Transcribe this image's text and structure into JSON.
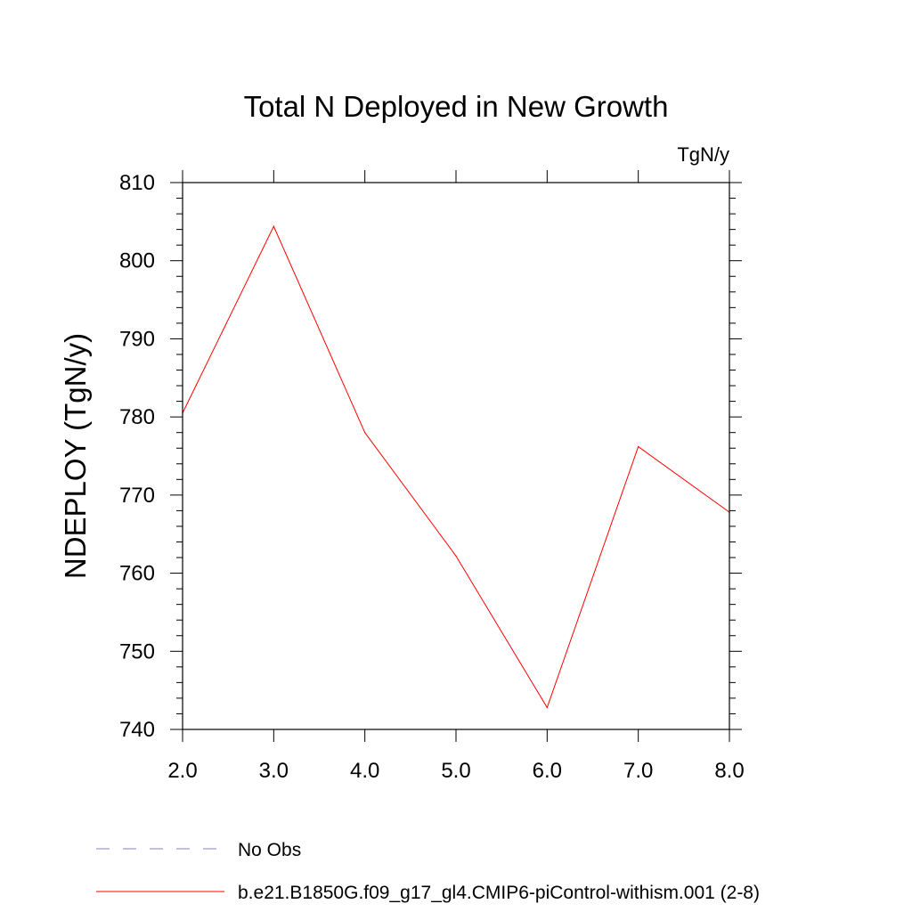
{
  "chart_data": {
    "type": "line",
    "title": "Total N Deployed in New Growth",
    "units": "TgN/y",
    "ylabel": "NDEPLOY  (TgN/y)",
    "xlabel": "",
    "xlim": [
      2.0,
      8.0
    ],
    "ylim": [
      740,
      810
    ],
    "x_ticks": [
      2.0,
      3.0,
      4.0,
      5.0,
      6.0,
      7.0,
      8.0
    ],
    "x_tick_labels": [
      "2.0",
      "3.0",
      "4.0",
      "5.0",
      "6.0",
      "7.0",
      "8.0"
    ],
    "y_ticks": [
      740,
      750,
      760,
      770,
      780,
      790,
      800,
      810
    ],
    "y_tick_labels": [
      "740",
      "750",
      "760",
      "770",
      "780",
      "790",
      "800",
      "810"
    ],
    "grid": false,
    "series": [
      {
        "name": "b.e21.B1850G.f09_g17_gl4.CMIP6-piControl-withism.001 (2-8)",
        "color": "#ff0000",
        "style": "solid",
        "x": [
          2.0,
          3.0,
          4.0,
          5.0,
          6.0,
          7.0,
          8.0
        ],
        "y": [
          780.5,
          804.4,
          778.0,
          762.2,
          742.8,
          776.2,
          767.8
        ]
      }
    ],
    "legend": {
      "placement": "bottom-left",
      "entries": [
        {
          "label": "No Obs",
          "color": "#8080c0",
          "style": "dashed"
        },
        {
          "label": "b.e21.B1850G.f09_g17_gl4.CMIP6-piControl-withism.001 (2-8)",
          "color": "#ff0000",
          "style": "solid"
        }
      ]
    }
  }
}
